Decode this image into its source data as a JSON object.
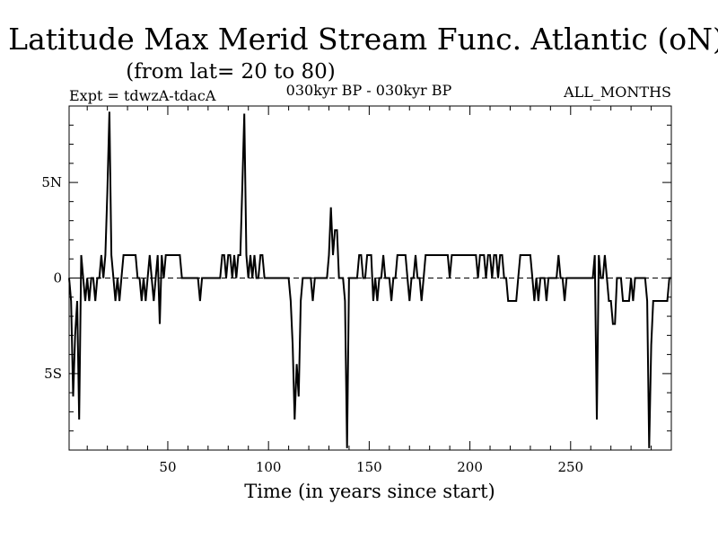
{
  "header": {
    "title": "Latitude Max Merid Stream Func. Atlantic (oN)",
    "subtitle": "(from lat= 20 to 80)",
    "expt": "Expt = tdwzA-tdacA",
    "period": "030kyr BP - 030kyr BP",
    "months": "ALL_MONTHS"
  },
  "chart_data": {
    "type": "line",
    "title": "Latitude Max Merid Stream Func. Atlantic (oN)",
    "subtitle": "(from lat= 20 to 80)",
    "xlabel": "Time (in years since start)",
    "ylabel": "",
    "xlim": [
      1,
      300
    ],
    "ylim": [
      -9,
      9
    ],
    "grid": false,
    "zero_line": "dashed",
    "x_ticks": [
      {
        "value": 50,
        "label": "50"
      },
      {
        "value": 100,
        "label": "100"
      },
      {
        "value": 150,
        "label": "150"
      },
      {
        "value": 200,
        "label": "200"
      },
      {
        "value": 250,
        "label": "250"
      }
    ],
    "y_ticks": [
      {
        "value": 5,
        "label": "5N"
      },
      {
        "value": 0,
        "label": "0"
      },
      {
        "value": -5,
        "label": "5S"
      }
    ],
    "series": [
      {
        "color": "#000000",
        "points": [
          [
            1,
            0
          ],
          [
            2,
            -1.2
          ],
          [
            3,
            -6.2
          ],
          [
            4,
            -3
          ],
          [
            5,
            -1.2
          ],
          [
            6,
            -7.4
          ],
          [
            7,
            1.2
          ],
          [
            8,
            0
          ],
          [
            9,
            -1.2
          ],
          [
            10,
            0
          ],
          [
            11,
            -1.2
          ],
          [
            12,
            0
          ],
          [
            13,
            0
          ],
          [
            14,
            -1.2
          ],
          [
            15,
            0
          ],
          [
            16,
            0
          ],
          [
            17,
            1.2
          ],
          [
            18,
            0
          ],
          [
            19,
            1.2
          ],
          [
            20,
            4.5
          ],
          [
            21,
            8.7
          ],
          [
            22,
            1.2
          ],
          [
            23,
            0
          ],
          [
            24,
            -1.2
          ],
          [
            25,
            0
          ],
          [
            26,
            -1.2
          ],
          [
            27,
            0
          ],
          [
            28,
            1.2
          ],
          [
            29,
            1.2
          ],
          [
            30,
            1.2
          ],
          [
            31,
            1.2
          ],
          [
            32,
            1.2
          ],
          [
            33,
            1.2
          ],
          [
            34,
            1.2
          ],
          [
            35,
            0
          ],
          [
            36,
            0
          ],
          [
            37,
            -1.2
          ],
          [
            38,
            0
          ],
          [
            39,
            -1.2
          ],
          [
            40,
            0
          ],
          [
            41,
            1.2
          ],
          [
            42,
            0
          ],
          [
            43,
            -1.2
          ],
          [
            44,
            0
          ],
          [
            45,
            1.2
          ],
          [
            46,
            -2.4
          ],
          [
            47,
            1.2
          ],
          [
            48,
            0
          ],
          [
            49,
            1.2
          ],
          [
            50,
            1.2
          ],
          [
            51,
            1.2
          ],
          [
            52,
            1.2
          ],
          [
            53,
            1.2
          ],
          [
            54,
            1.2
          ],
          [
            55,
            1.2
          ],
          [
            56,
            1.2
          ],
          [
            57,
            0
          ],
          [
            58,
            0
          ],
          [
            59,
            0
          ],
          [
            60,
            0
          ],
          [
            61,
            0
          ],
          [
            62,
            0
          ],
          [
            63,
            0
          ],
          [
            64,
            0
          ],
          [
            65,
            0
          ],
          [
            66,
            -1.2
          ],
          [
            67,
            0
          ],
          [
            68,
            0
          ],
          [
            69,
            0
          ],
          [
            70,
            0
          ],
          [
            71,
            0
          ],
          [
            72,
            0
          ],
          [
            73,
            0
          ],
          [
            74,
            0
          ],
          [
            75,
            0
          ],
          [
            76,
            0
          ],
          [
            77,
            1.2
          ],
          [
            78,
            1.2
          ],
          [
            79,
            0
          ],
          [
            80,
            1.2
          ],
          [
            81,
            1.2
          ],
          [
            82,
            0
          ],
          [
            83,
            1.2
          ],
          [
            84,
            0
          ],
          [
            85,
            1.2
          ],
          [
            86,
            1.2
          ],
          [
            87,
            4.8
          ],
          [
            88,
            8.6
          ],
          [
            89,
            1.2
          ],
          [
            90,
            0
          ],
          [
            91,
            1.2
          ],
          [
            92,
            0
          ],
          [
            93,
            1.2
          ],
          [
            94,
            0
          ],
          [
            95,
            0
          ],
          [
            96,
            1.2
          ],
          [
            97,
            1.2
          ],
          [
            98,
            0
          ],
          [
            99,
            0
          ],
          [
            100,
            0
          ],
          [
            101,
            0
          ],
          [
            102,
            0
          ],
          [
            103,
            0
          ],
          [
            104,
            0
          ],
          [
            105,
            0
          ],
          [
            106,
            0
          ],
          [
            107,
            0
          ],
          [
            108,
            0
          ],
          [
            109,
            0
          ],
          [
            110,
            0
          ],
          [
            111,
            -1.2
          ],
          [
            112,
            -3.5
          ],
          [
            113,
            -7.4
          ],
          [
            114,
            -4.5
          ],
          [
            115,
            -6.2
          ],
          [
            116,
            -1.2
          ],
          [
            117,
            0
          ],
          [
            118,
            0
          ],
          [
            119,
            0
          ],
          [
            120,
            0
          ],
          [
            121,
            0
          ],
          [
            122,
            -1.2
          ],
          [
            123,
            0
          ],
          [
            124,
            0
          ],
          [
            125,
            0
          ],
          [
            126,
            0
          ],
          [
            127,
            0
          ],
          [
            128,
            0
          ],
          [
            129,
            0
          ],
          [
            130,
            1.2
          ],
          [
            131,
            3.7
          ],
          [
            132,
            1.2
          ],
          [
            133,
            2.5
          ],
          [
            134,
            2.5
          ],
          [
            135,
            0
          ],
          [
            136,
            0
          ],
          [
            137,
            0
          ],
          [
            138,
            -1.2
          ],
          [
            139,
            -8.9
          ],
          [
            140,
            0
          ],
          [
            141,
            0
          ],
          [
            142,
            0
          ],
          [
            143,
            0
          ],
          [
            144,
            0
          ],
          [
            145,
            1.2
          ],
          [
            146,
            1.2
          ],
          [
            147,
            0
          ],
          [
            148,
            0
          ],
          [
            149,
            1.2
          ],
          [
            150,
            1.2
          ],
          [
            151,
            1.2
          ],
          [
            152,
            -1.2
          ],
          [
            153,
            0
          ],
          [
            154,
            -1.2
          ],
          [
            155,
            0
          ],
          [
            156,
            0
          ],
          [
            157,
            1.2
          ],
          [
            158,
            0
          ],
          [
            159,
            0
          ],
          [
            160,
            0
          ],
          [
            161,
            -1.2
          ],
          [
            162,
            0
          ],
          [
            163,
            0
          ],
          [
            164,
            1.2
          ],
          [
            165,
            1.2
          ],
          [
            166,
            1.2
          ],
          [
            167,
            1.2
          ],
          [
            168,
            1.2
          ],
          [
            169,
            0
          ],
          [
            170,
            -1.2
          ],
          [
            171,
            0
          ],
          [
            172,
            0
          ],
          [
            173,
            1.2
          ],
          [
            174,
            0
          ],
          [
            175,
            0
          ],
          [
            176,
            -1.2
          ],
          [
            177,
            0
          ],
          [
            178,
            1.2
          ],
          [
            179,
            1.2
          ],
          [
            180,
            1.2
          ],
          [
            181,
            1.2
          ],
          [
            182,
            1.2
          ],
          [
            183,
            1.2
          ],
          [
            184,
            1.2
          ],
          [
            185,
            1.2
          ],
          [
            186,
            1.2
          ],
          [
            187,
            1.2
          ],
          [
            188,
            1.2
          ],
          [
            189,
            1.2
          ],
          [
            190,
            0
          ],
          [
            191,
            1.2
          ],
          [
            192,
            1.2
          ],
          [
            193,
            1.2
          ],
          [
            194,
            1.2
          ],
          [
            195,
            1.2
          ],
          [
            196,
            1.2
          ],
          [
            197,
            1.2
          ],
          [
            198,
            1.2
          ],
          [
            199,
            1.2
          ],
          [
            200,
            1.2
          ],
          [
            201,
            1.2
          ],
          [
            202,
            1.2
          ],
          [
            203,
            1.2
          ],
          [
            204,
            0
          ],
          [
            205,
            1.2
          ],
          [
            206,
            1.2
          ],
          [
            207,
            1.2
          ],
          [
            208,
            0
          ],
          [
            209,
            1.2
          ],
          [
            210,
            1.2
          ],
          [
            211,
            0
          ],
          [
            212,
            1.2
          ],
          [
            213,
            1.2
          ],
          [
            214,
            0
          ],
          [
            215,
            1.2
          ],
          [
            216,
            1.2
          ],
          [
            217,
            0
          ],
          [
            218,
            0
          ],
          [
            219,
            -1.2
          ],
          [
            220,
            -1.2
          ],
          [
            221,
            -1.2
          ],
          [
            222,
            -1.2
          ],
          [
            223,
            -1.2
          ],
          [
            224,
            0
          ],
          [
            225,
            1.2
          ],
          [
            226,
            1.2
          ],
          [
            227,
            1.2
          ],
          [
            228,
            1.2
          ],
          [
            229,
            1.2
          ],
          [
            230,
            1.2
          ],
          [
            231,
            0
          ],
          [
            232,
            -1.2
          ],
          [
            233,
            0
          ],
          [
            234,
            -1.2
          ],
          [
            235,
            0
          ],
          [
            236,
            0
          ],
          [
            237,
            0
          ],
          [
            238,
            -1.2
          ],
          [
            239,
            0
          ],
          [
            240,
            0
          ],
          [
            241,
            0
          ],
          [
            242,
            0
          ],
          [
            243,
            0
          ],
          [
            244,
            1.2
          ],
          [
            245,
            0
          ],
          [
            246,
            0
          ],
          [
            247,
            -1.2
          ],
          [
            248,
            0
          ],
          [
            249,
            0
          ],
          [
            250,
            0
          ],
          [
            251,
            0
          ],
          [
            252,
            0
          ],
          [
            253,
            0
          ],
          [
            254,
            0
          ],
          [
            255,
            0
          ],
          [
            256,
            0
          ],
          [
            257,
            0
          ],
          [
            258,
            0
          ],
          [
            259,
            0
          ],
          [
            260,
            0
          ],
          [
            261,
            0
          ],
          [
            262,
            1.2
          ],
          [
            263,
            -7.4
          ],
          [
            264,
            1.2
          ],
          [
            265,
            0
          ],
          [
            266,
            0
          ],
          [
            267,
            1.2
          ],
          [
            268,
            0
          ],
          [
            269,
            -1.2
          ],
          [
            270,
            -1.2
          ],
          [
            271,
            -2.4
          ],
          [
            272,
            -2.4
          ],
          [
            273,
            0
          ],
          [
            274,
            0
          ],
          [
            275,
            0
          ],
          [
            276,
            -1.2
          ],
          [
            277,
            -1.2
          ],
          [
            278,
            -1.2
          ],
          [
            279,
            -1.2
          ],
          [
            280,
            0
          ],
          [
            281,
            -1.2
          ],
          [
            282,
            0
          ],
          [
            283,
            0
          ],
          [
            284,
            0
          ],
          [
            285,
            0
          ],
          [
            286,
            0
          ],
          [
            287,
            0
          ],
          [
            288,
            -1.2
          ],
          [
            289,
            -8.9
          ],
          [
            290,
            -3.5
          ],
          [
            291,
            -1.2
          ],
          [
            292,
            -1.2
          ],
          [
            293,
            -1.2
          ],
          [
            294,
            -1.2
          ],
          [
            295,
            -1.2
          ],
          [
            296,
            -1.2
          ],
          [
            297,
            -1.2
          ],
          [
            298,
            -1.2
          ],
          [
            299,
            0
          ],
          [
            300,
            0
          ]
        ]
      }
    ]
  }
}
